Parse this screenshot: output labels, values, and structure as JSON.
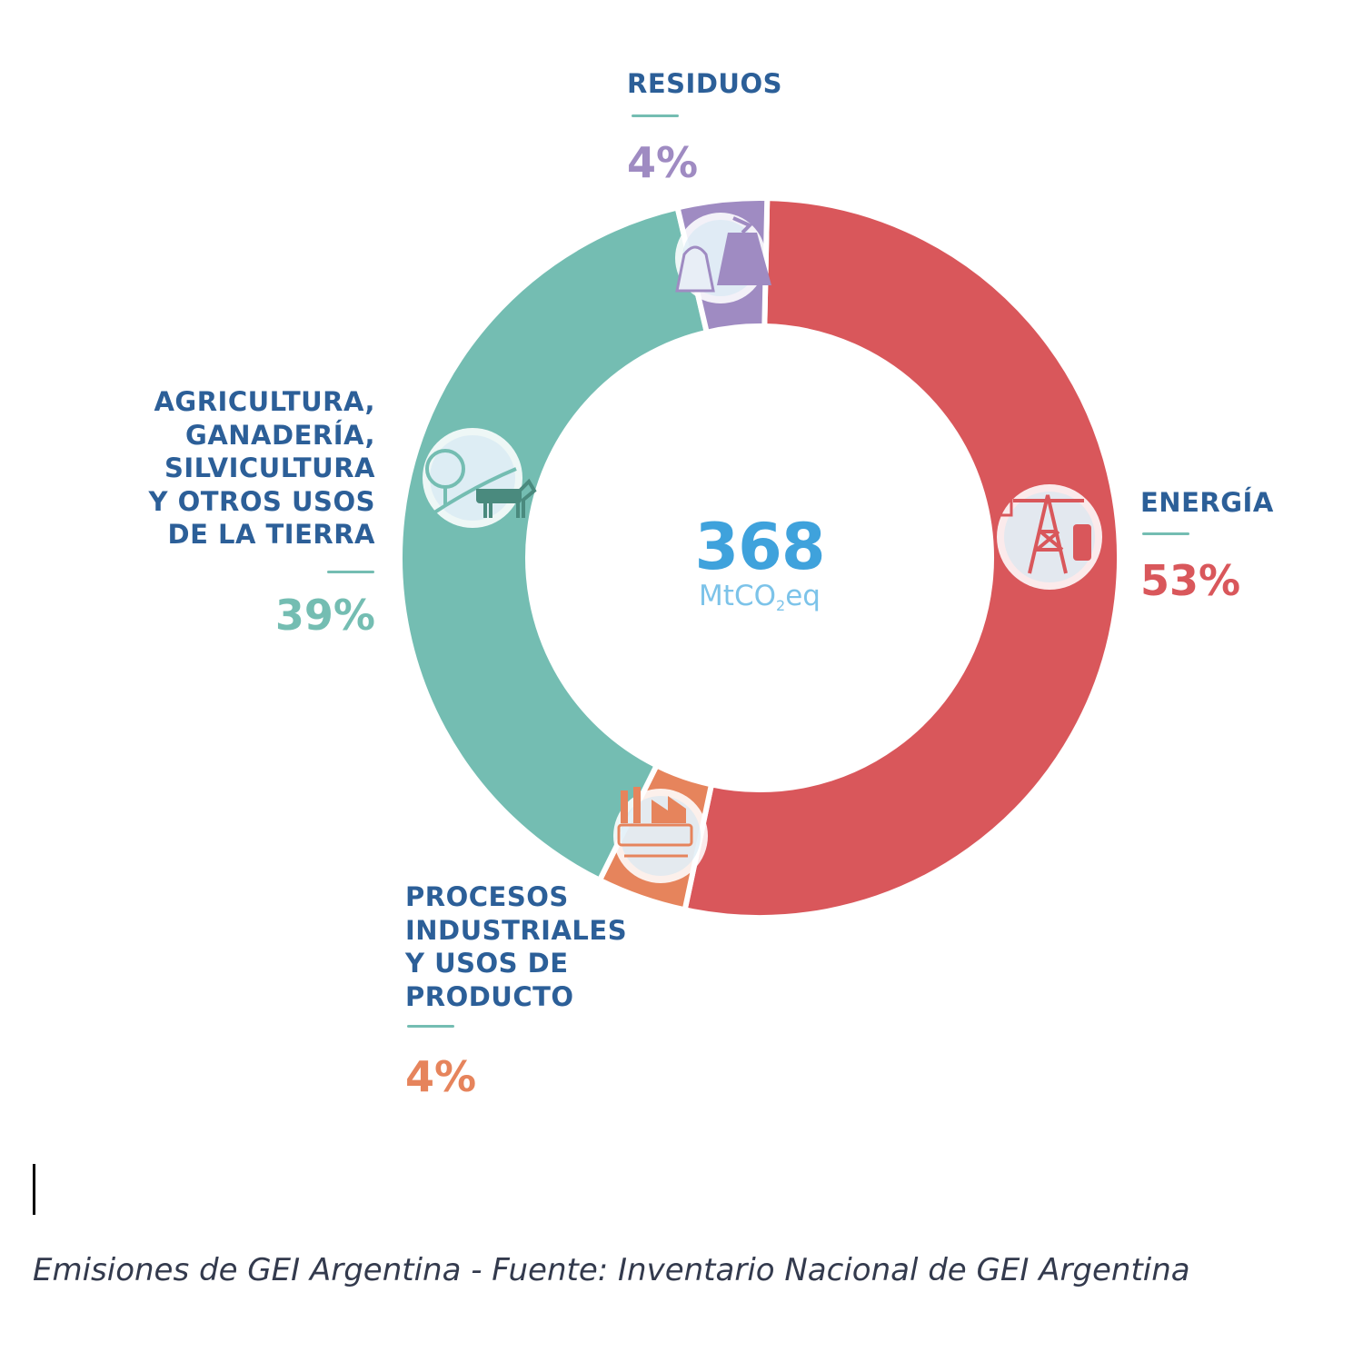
{
  "chart_data": {
    "type": "pie",
    "variant": "donut",
    "categories": [
      "ENERGÍA",
      "PROCESOS INDUSTRIALES Y USOS DE PRODUCTO",
      "AGRICULTURA, GANADERÍA, SILVICULTURA Y OTROS USOS DE LA TIERRA",
      "RESIDUOS"
    ],
    "values": [
      53,
      4,
      39,
      4
    ],
    "value_labels": [
      "53%",
      "4%",
      "39%",
      "4%"
    ],
    "colors": [
      "#d9575b",
      "#e6845c",
      "#74bdb2",
      "#9f8bc2"
    ],
    "icons": [
      "oil-rig-icon",
      "factory-icon",
      "tree-cow-icon",
      "garbage-bag-icon"
    ],
    "center": {
      "value": "368",
      "unit": "MtCO",
      "unit_sub": "2",
      "unit_suffix": "eq"
    }
  },
  "labels": {
    "energia": {
      "lines": [
        "ENERGÍA"
      ]
    },
    "procesos": {
      "lines": [
        "PROCESOS",
        "INDUSTRIALES",
        "Y USOS DE",
        "PRODUCTO"
      ]
    },
    "agricultura": {
      "lines": [
        "AGRICULTURA,",
        "GANADERÍA,",
        "SILVICULTURA",
        "Y OTROS USOS",
        "DE LA TIERRA"
      ]
    },
    "residuos": {
      "lines": [
        "RESIDUOS"
      ]
    }
  },
  "caption": "Emisiones de GEI Argentina - Fuente: Inventario Nacional de GEI Argentina"
}
